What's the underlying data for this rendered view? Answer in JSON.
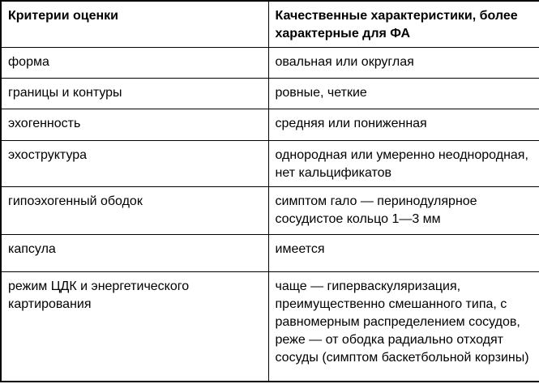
{
  "colors": {
    "background": "#ffffff",
    "border": "#000000",
    "text": "#000000"
  },
  "table": {
    "headers": [
      "Критерии оценки",
      "Качественные характеристики, более характерные для ФА"
    ],
    "rows": [
      {
        "criterion": "форма",
        "characteristic": "овальная или округлая"
      },
      {
        "criterion": "границы и контуры",
        "characteristic": "ровные, четкие"
      },
      {
        "criterion": "эхогенность",
        "characteristic": "средняя или пониженная"
      },
      {
        "criterion": "эхоструктура",
        "characteristic": "однородная или умеренно неоднородная, нет кальцификатов"
      },
      {
        "criterion": "гипоэхогенный ободок",
        "characteristic": "симптом гало — перинодулярное сосудистое кольцо 1—3 мм"
      },
      {
        "criterion": "капсула",
        "characteristic": "имеется"
      },
      {
        "criterion": "режим ЦДК и энергетического картирования",
        "characteristic": "чаще — гиперваскуляризация, преимущественно смешанного типа, с равномерным распределением сосудов, реже — от ободка радиально отходят сосуды (симптом баскетбольной корзины)"
      }
    ]
  }
}
